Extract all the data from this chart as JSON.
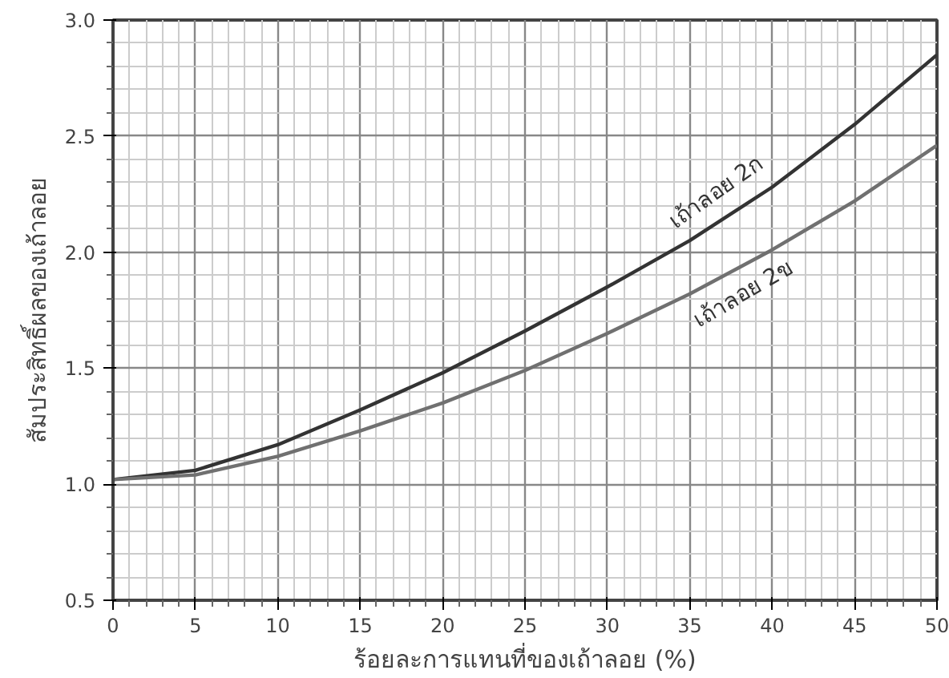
{
  "chart_data": {
    "type": "line",
    "xlabel": "ร้อยละการแทนที่ของเถ้าลอย (%)",
    "ylabel": "สัมประสิทธิ์ผลของเถ้าลอย",
    "x": [
      0,
      5,
      10,
      15,
      20,
      25,
      30,
      35,
      40,
      45,
      50
    ],
    "series": [
      {
        "color": "#333333",
        "values": [
          1.02,
          1.06,
          1.17,
          1.32,
          1.48,
          1.66,
          1.85,
          2.05,
          2.28,
          2.55,
          2.85
        ]
      },
      {
        "color": "#707070",
        "values": [
          1.02,
          1.04,
          1.12,
          1.23,
          1.35,
          1.49,
          1.65,
          1.82,
          2.01,
          2.22,
          2.46
        ]
      }
    ],
    "annotations": [
      "เถ้าลอย 2ก",
      "เถ้าลอย 2ข"
    ],
    "xlim": [
      0,
      50
    ],
    "xticks": [
      0,
      5,
      10,
      15,
      20,
      25,
      30,
      35,
      40,
      45,
      50
    ],
    "ylim": [
      0.5,
      3.0
    ],
    "yticks": [
      {
        "value": 0.5,
        "label": "0.5"
      },
      {
        "value": 1.0,
        "label": "1.0"
      },
      {
        "value": 1.5,
        "label": "1.5"
      },
      {
        "value": 2.0,
        "label": "2.0"
      },
      {
        "value": 2.5,
        "label": "2.5"
      },
      {
        "value": 3.0,
        "label": "3.0"
      }
    ],
    "grid": true,
    "marker": "none",
    "line_style": "solid"
  }
}
